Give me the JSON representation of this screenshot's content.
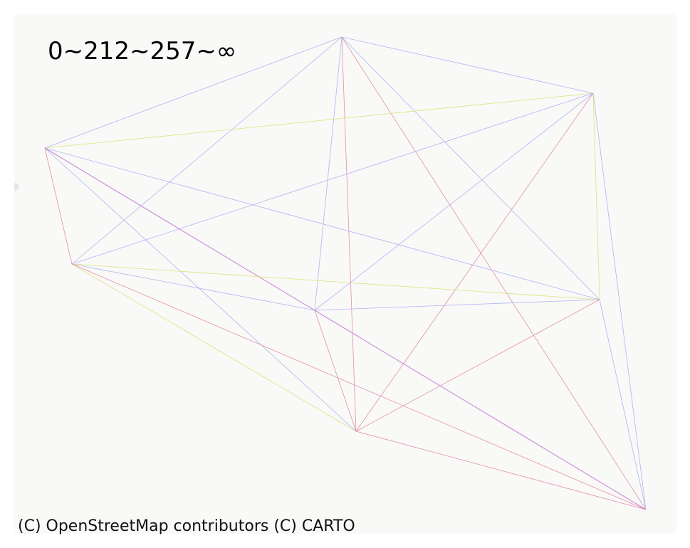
{
  "legend": {
    "text": "0~212~257~∞"
  },
  "attribution": {
    "text": "(C) OpenStreetMap contributors (C) CARTO"
  },
  "colors": {
    "map_background": "#f9f9f8",
    "page_background": "#ffffff",
    "low_band": "#b3b3f2",
    "mid_band": "#e0e07a",
    "high_band": "#e290a8",
    "mixed_band": "#c98ad6"
  },
  "network": {
    "nodes": [
      {
        "id": "n-north"
      },
      {
        "id": "n-northeast"
      },
      {
        "id": "n-west"
      },
      {
        "id": "n-southwest"
      },
      {
        "id": "n-center"
      },
      {
        "id": "n-east"
      },
      {
        "id": "n-south"
      },
      {
        "id": "n-southeast"
      }
    ],
    "edges": [
      {
        "from": "n-north",
        "to": "n-northeast",
        "band": "low_band"
      },
      {
        "from": "n-north",
        "to": "n-west",
        "band": "low_band"
      },
      {
        "from": "n-north",
        "to": "n-southwest",
        "band": "low_band"
      },
      {
        "from": "n-north",
        "to": "n-center",
        "band": "low_band"
      },
      {
        "from": "n-north",
        "to": "n-east",
        "band": "low_band"
      },
      {
        "from": "n-north",
        "to": "n-south",
        "band": "high_band"
      },
      {
        "from": "n-north",
        "to": "n-southeast",
        "band": "high_band"
      },
      {
        "from": "n-northeast",
        "to": "n-west",
        "band": "mid_band"
      },
      {
        "from": "n-northeast",
        "to": "n-southwest",
        "band": "low_band"
      },
      {
        "from": "n-northeast",
        "to": "n-center",
        "band": "low_band"
      },
      {
        "from": "n-northeast",
        "to": "n-east",
        "band": "mid_band"
      },
      {
        "from": "n-northeast",
        "to": "n-south",
        "band": "high_band"
      },
      {
        "from": "n-northeast",
        "to": "n-southeast",
        "band": "low_band"
      },
      {
        "from": "n-west",
        "to": "n-southwest",
        "band": "high_band"
      },
      {
        "from": "n-west",
        "to": "n-east",
        "band": "low_band"
      },
      {
        "from": "n-west",
        "to": "n-south",
        "band": "low_band"
      },
      {
        "from": "n-west",
        "to": "n-southeast",
        "band": "mixed_band"
      },
      {
        "from": "n-southwest",
        "to": "n-center",
        "band": "low_band"
      },
      {
        "from": "n-southwest",
        "to": "n-east",
        "band": "mid_band"
      },
      {
        "from": "n-southwest",
        "to": "n-south",
        "band": "mid_band"
      },
      {
        "from": "n-southwest",
        "to": "n-southeast",
        "band": "high_band"
      },
      {
        "from": "n-center",
        "to": "n-east",
        "band": "low_band"
      },
      {
        "from": "n-center",
        "to": "n-south",
        "band": "high_band"
      },
      {
        "from": "n-east",
        "to": "n-south",
        "band": "high_band"
      },
      {
        "from": "n-east",
        "to": "n-southeast",
        "band": "low_band"
      },
      {
        "from": "n-south",
        "to": "n-southeast",
        "band": "high_band"
      }
    ]
  }
}
